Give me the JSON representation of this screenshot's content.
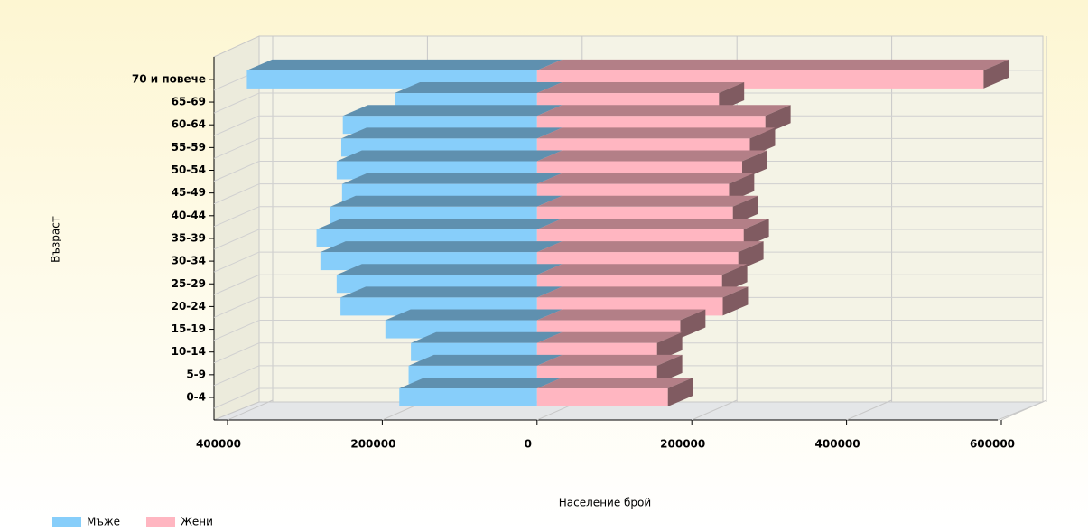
{
  "chart_data": {
    "type": "pyramid-bar-3d",
    "x_label": "Население брой",
    "y_label": "Възраст",
    "categories": [
      "0-4",
      "5-9",
      "10-14",
      "15-19",
      "20-24",
      "25-29",
      "30-34",
      "35-39",
      "40-44",
      "45-49",
      "50-54",
      "55-59",
      "60-64",
      "65-69",
      "70 и повече"
    ],
    "series": [
      {
        "name": "Мъже",
        "color": "#87cefa",
        "values": [
          -178000,
          -166000,
          -163000,
          -196000,
          -254000,
          -259000,
          -280000,
          -285000,
          -267000,
          -252000,
          -259000,
          -253000,
          -251000,
          -184000,
          -375000
        ]
      },
      {
        "name": "Жени",
        "color": "#ffb6c1",
        "values": [
          169000,
          155000,
          155000,
          185000,
          240000,
          239000,
          260000,
          267000,
          253000,
          248000,
          265000,
          275000,
          295000,
          235000,
          577000
        ]
      }
    ],
    "xlim": [
      -400000,
      600000
    ],
    "xticks": [
      {
        "value": -400000,
        "label": "400000"
      },
      {
        "value": -200000,
        "label": "200000"
      },
      0,
      200000,
      400000,
      600000
    ],
    "grid": true,
    "legend": "bottom-left"
  }
}
